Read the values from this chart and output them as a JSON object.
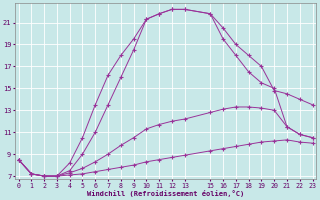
{
  "xlabel": "Windchill (Refroidissement éolien,°C)",
  "bg_color": "#c8e8e8",
  "grid_color": "#aacccc",
  "line_color": "#993399",
  "xlim": [
    -0.3,
    23.3
  ],
  "ylim": [
    6.7,
    22.8
  ],
  "yticks": [
    7,
    9,
    11,
    13,
    15,
    17,
    19,
    21
  ],
  "xticks": [
    0,
    1,
    2,
    3,
    4,
    5,
    6,
    7,
    8,
    9,
    10,
    11,
    12,
    13,
    15,
    16,
    17,
    18,
    19,
    20,
    21,
    22,
    23
  ],
  "s1_x": [
    0,
    1,
    2,
    3,
    4,
    5,
    6,
    7,
    8,
    9,
    10,
    11,
    12,
    13,
    15,
    16,
    17,
    18,
    19,
    20,
    21,
    22,
    23
  ],
  "s1_y": [
    8.5,
    7.2,
    7.0,
    7.0,
    7.1,
    7.2,
    7.4,
    7.6,
    7.8,
    8.0,
    8.3,
    8.5,
    8.7,
    8.9,
    9.3,
    9.5,
    9.7,
    9.9,
    10.1,
    10.2,
    10.3,
    10.1,
    10.0
  ],
  "s2_x": [
    0,
    1,
    2,
    3,
    4,
    5,
    6,
    7,
    8,
    9,
    10,
    11,
    12,
    13,
    15,
    16,
    17,
    18,
    19,
    20,
    21,
    22,
    23
  ],
  "s2_y": [
    8.5,
    7.2,
    7.0,
    7.0,
    7.3,
    7.7,
    8.3,
    9.0,
    9.8,
    10.5,
    11.3,
    11.7,
    12.0,
    12.2,
    12.8,
    13.1,
    13.3,
    13.3,
    13.2,
    13.0,
    11.5,
    10.8,
    10.5
  ],
  "s3_x": [
    0,
    1,
    2,
    3,
    4,
    5,
    6,
    7,
    8,
    9,
    10,
    11,
    12,
    13,
    15,
    16,
    17,
    18,
    19,
    20,
    21,
    22,
    23
  ],
  "s3_y": [
    8.5,
    7.2,
    7.0,
    7.0,
    8.2,
    10.5,
    13.5,
    16.2,
    18.0,
    19.5,
    21.3,
    21.8,
    22.2,
    22.2,
    21.8,
    20.5,
    19.0,
    18.0,
    17.0,
    14.8,
    14.5,
    14.0,
    13.5
  ],
  "s4_x": [
    0,
    1,
    2,
    3,
    4,
    5,
    6,
    7,
    8,
    9,
    10,
    11,
    12,
    13,
    15,
    16,
    17,
    18,
    19,
    20,
    21,
    22,
    23
  ],
  "s4_y": [
    8.5,
    7.2,
    7.0,
    7.0,
    7.5,
    9.0,
    11.0,
    13.5,
    16.0,
    18.5,
    21.3,
    21.8,
    22.2,
    22.2,
    21.8,
    19.5,
    18.0,
    16.5,
    15.5,
    15.0,
    11.5,
    10.8,
    10.5
  ]
}
